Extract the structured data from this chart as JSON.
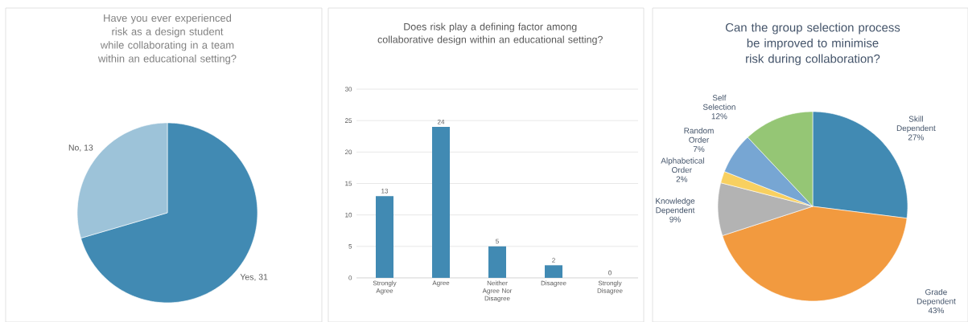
{
  "chart_data": [
    {
      "type": "pie",
      "title": "Have you ever experienced risk as a design student while collaborating in a team within an educational setting?",
      "categories": [
        "Yes",
        "No"
      ],
      "values": [
        31,
        13
      ],
      "colors": [
        "#418ab3",
        "#9dc3d9"
      ],
      "value_labels": [
        ", 31",
        ", 13"
      ]
    },
    {
      "type": "bar",
      "title": "Does risk play a defining factor among collaborative design within an educational setting?",
      "categories": [
        "Strongly Agree",
        "Agree",
        "Neither Agree Nor Disagree",
        "Disagree",
        "Strongly Disagree"
      ],
      "values": [
        13,
        24,
        5,
        2,
        0
      ],
      "color": "#418ab3",
      "ylim": [
        0,
        30
      ],
      "yticks": [
        0,
        5,
        10,
        15,
        20,
        25,
        30
      ],
      "grid": "y",
      "data_labels": true
    },
    {
      "type": "pie",
      "title": "Can the group selection process be improved to minimise risk during collaboration?",
      "categories": [
        "Skill Dependent",
        "Grade Dependent",
        "Knowledge Dependent",
        "Alphabetical Order",
        "Random Order",
        "Self Selection"
      ],
      "values": [
        27,
        43,
        9,
        2,
        7,
        12
      ],
      "colors": [
        "#418ab3",
        "#f29a3f",
        "#b3b3b3",
        "#f8d060",
        "#77a6d3",
        "#95c675"
      ],
      "value_labels": [
        "27%",
        "43%",
        "9%",
        "2%",
        "7%",
        "12%"
      ]
    }
  ]
}
